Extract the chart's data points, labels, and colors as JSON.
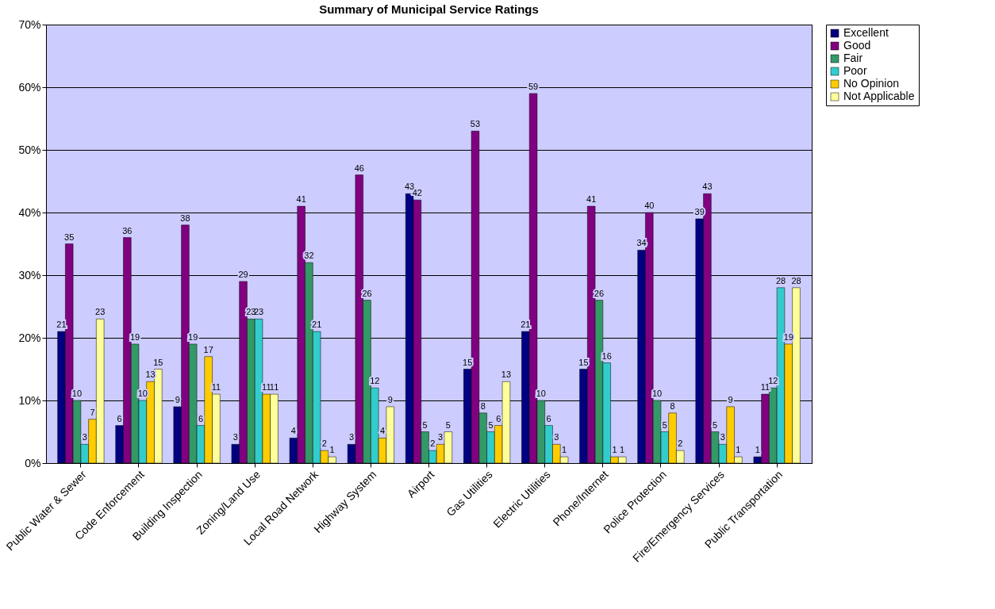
{
  "chart_data": {
    "type": "bar",
    "title": "Summary of Municipal Service Ratings",
    "categories": [
      "Public Water & Sewer",
      "Code Enforcement",
      "Building Inspection",
      "Zoning/Land Use",
      "Local Road Network",
      "Highway System",
      "Airport",
      "Gas Utilities",
      "Electric Utilities",
      "Phone/Internet",
      "Police Protection",
      "Fire/Emergency Services",
      "Public Transportation"
    ],
    "series": [
      {
        "name": "Excellent",
        "color": "#000080",
        "values": [
          21,
          6,
          9,
          3,
          4,
          3,
          43,
          15,
          21,
          15,
          34,
          39,
          1
        ]
      },
      {
        "name": "Good",
        "color": "#800080",
        "values": [
          35,
          36,
          38,
          29,
          41,
          46,
          42,
          53,
          59,
          41,
          40,
          43,
          11
        ]
      },
      {
        "name": "Fair",
        "color": "#339966",
        "values": [
          10,
          19,
          19,
          23,
          32,
          26,
          5,
          8,
          10,
          26,
          10,
          5,
          12
        ]
      },
      {
        "name": "Poor",
        "color": "#33cccc",
        "values": [
          3,
          10,
          6,
          23,
          21,
          12,
          2,
          5,
          6,
          16,
          5,
          3,
          28
        ]
      },
      {
        "name": "No Opinion",
        "color": "#ffcc00",
        "values": [
          7,
          13,
          17,
          11,
          2,
          4,
          3,
          6,
          3,
          1,
          8,
          9,
          19
        ]
      },
      {
        "name": "Not Applicable",
        "color": "#ffff99",
        "values": [
          23,
          15,
          11,
          11,
          1,
          9,
          5,
          13,
          1,
          1,
          2,
          1,
          28
        ]
      }
    ],
    "ylim": [
      0,
      70
    ],
    "yticks": [
      {
        "value": 0,
        "label": "0%"
      },
      {
        "value": 10,
        "label": "10%"
      },
      {
        "value": 20,
        "label": "20%"
      },
      {
        "value": 30,
        "label": "30%"
      },
      {
        "value": 40,
        "label": "40%"
      },
      {
        "value": 50,
        "label": "50%"
      },
      {
        "value": 60,
        "label": "60%"
      },
      {
        "value": 70,
        "label": "70%"
      }
    ],
    "grid": "y",
    "legend": "right",
    "data_labels": true
  }
}
